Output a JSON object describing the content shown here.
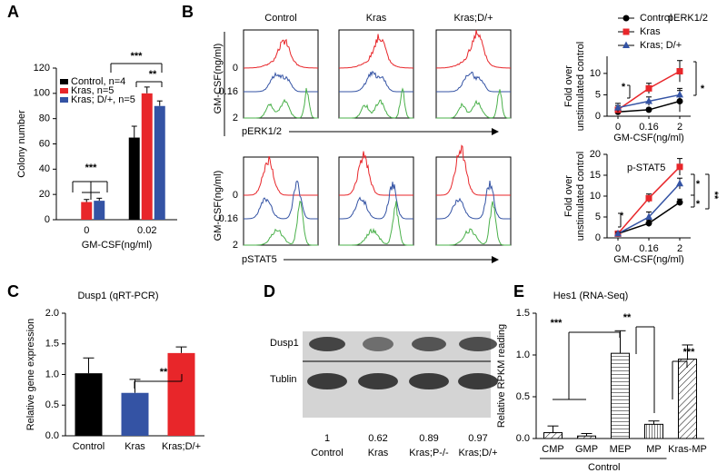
{
  "panel_labels": [
    "A",
    "B",
    "C",
    "D",
    "E"
  ],
  "chart_data": [
    {
      "type": "bar",
      "xlabel": "GM-CSF(ng/ml)",
      "ylabel": "Colony number",
      "categories": [
        "0",
        "0.02"
      ],
      "series": [
        {
          "name": "Control, n=4",
          "color": "#000000",
          "values": [
            0,
            65
          ],
          "errors": [
            0,
            9
          ]
        },
        {
          "name": "Kras, n=5",
          "color": "#e8262a",
          "values": [
            14,
            100
          ],
          "errors": [
            2,
            5
          ]
        },
        {
          "name": "Kras; D/+, n=5",
          "color": "#3453a4",
          "values": [
            15,
            90
          ],
          "errors": [
            2,
            4
          ]
        }
      ],
      "ylim": [
        0,
        120
      ],
      "yticks": [
        0,
        20,
        40,
        60,
        80,
        100,
        120
      ],
      "legend": "upper left",
      "annotations": [
        "***",
        "***",
        "**"
      ]
    },
    {
      "type": "line",
      "title": "pERK1/2",
      "xlabel": "GM-CSF(ng/ml)",
      "ylabel": [
        "Fold over",
        "unstimulated control"
      ],
      "categories": [
        "0",
        "0.16",
        "2"
      ],
      "series": [
        {
          "name": "Control",
          "color": "#000000",
          "marker": "circle",
          "values": [
            1,
            1.5,
            3.5
          ],
          "errors": [
            0.5,
            0.4,
            2.5
          ]
        },
        {
          "name": "Kras",
          "color": "#e8262a",
          "marker": "square",
          "values": [
            1.5,
            6.5,
            10.5
          ],
          "errors": [
            1,
            1.2,
            2.5
          ]
        },
        {
          "name": "Kras; D/+",
          "color": "#3453a4",
          "marker": "triangle",
          "values": [
            2,
            3.5,
            5
          ],
          "errors": [
            1,
            1,
            1.5
          ]
        }
      ],
      "ylim": [
        0,
        14
      ],
      "yticks": [
        0,
        5,
        10
      ],
      "legend": "top",
      "annotations": [
        "*",
        "*"
      ]
    },
    {
      "type": "line",
      "title": "p-STAT5",
      "xlabel": "GM-CSF(ng/ml)",
      "ylabel": [
        "Fold over",
        "unstimulated control"
      ],
      "categories": [
        "0",
        "0.16",
        "2"
      ],
      "series": [
        {
          "name": "Control",
          "color": "#000000",
          "marker": "circle",
          "values": [
            1,
            3.5,
            8.5
          ],
          "errors": [
            0.3,
            0.8,
            0.8
          ]
        },
        {
          "name": "Kras",
          "color": "#e8262a",
          "marker": "square",
          "values": [
            1,
            9.5,
            17
          ],
          "errors": [
            0.3,
            1,
            2
          ]
        },
        {
          "name": "Kras; D/+",
          "color": "#3453a4",
          "marker": "triangle",
          "values": [
            1,
            5,
            13
          ],
          "errors": [
            0.3,
            1.2,
            1.3
          ]
        }
      ],
      "ylim": [
        0,
        20
      ],
      "yticks": [
        0,
        5,
        10,
        15,
        20
      ],
      "annotations": [
        "*",
        "*",
        "*",
        "**"
      ]
    },
    {
      "type": "bar",
      "title": "Dusp1 (qRT-PCR)",
      "ylabel": "Relative gene expression",
      "categories": [
        "Control",
        "Kras",
        "Kras;D/+"
      ],
      "values": [
        1.02,
        0.7,
        1.35
      ],
      "errors": [
        0.25,
        0.22,
        0.1
      ],
      "colors": [
        "#000000",
        "#3453a4",
        "#e8262a"
      ],
      "ylim": [
        0,
        2
      ],
      "yticks": [
        {
          "value": 0,
          "label": "0.0"
        },
        {
          "value": 0.5,
          "label": "0.5"
        },
        {
          "value": 1,
          "label": "1.0"
        },
        {
          "value": 1.5,
          "label": "1.5"
        },
        {
          "value": 2,
          "label": "2.0"
        }
      ],
      "annotations": [
        "**"
      ]
    },
    {
      "type": "bar",
      "title": "Hes1 (RNA-Seq)",
      "ylabel": "Relative RPKM reading",
      "categories": [
        "CMP",
        "GMP",
        "MEP",
        "MP",
        "Kras-MP"
      ],
      "values": [
        0.07,
        0.03,
        1.02,
        0.17,
        0.95
      ],
      "errors": [
        0.08,
        0.03,
        0.27,
        0.04,
        0.17
      ],
      "patterns": [
        "diagonal",
        "diagonal",
        "horizontal",
        "vertical",
        "diagonal"
      ],
      "group_label": "Control",
      "ylim": [
        0,
        1.5
      ],
      "yticks": [
        {
          "value": 0,
          "label": "0.0"
        },
        {
          "value": 0.5,
          "label": "0.5"
        },
        {
          "value": 1,
          "label": "1.0"
        },
        {
          "value": 1.5,
          "label": "1.5"
        }
      ],
      "annotations": [
        "***",
        "**",
        "***"
      ]
    }
  ],
  "flow_histograms": {
    "columns": [
      "Control",
      "Kras",
      "Kras;D/+"
    ],
    "rows": [
      {
        "ylabel": "GM-CSF(ng/ml)",
        "levels": [
          "0",
          "0.16",
          "2"
        ],
        "xlabel": "pERK1/2"
      },
      {
        "ylabel": "GM-CSF(ng/ml)",
        "levels": [
          "0",
          "0.16",
          "2"
        ],
        "xlabel": "pSTAT5"
      }
    ]
  },
  "western_blot": {
    "bands": [
      "Dusp1",
      "Tublin"
    ],
    "quantification": [
      1,
      0.62,
      0.89,
      0.97
    ],
    "lanes": [
      "Control",
      "Kras",
      "Kras;P-/-",
      "Kras;D/+"
    ]
  }
}
